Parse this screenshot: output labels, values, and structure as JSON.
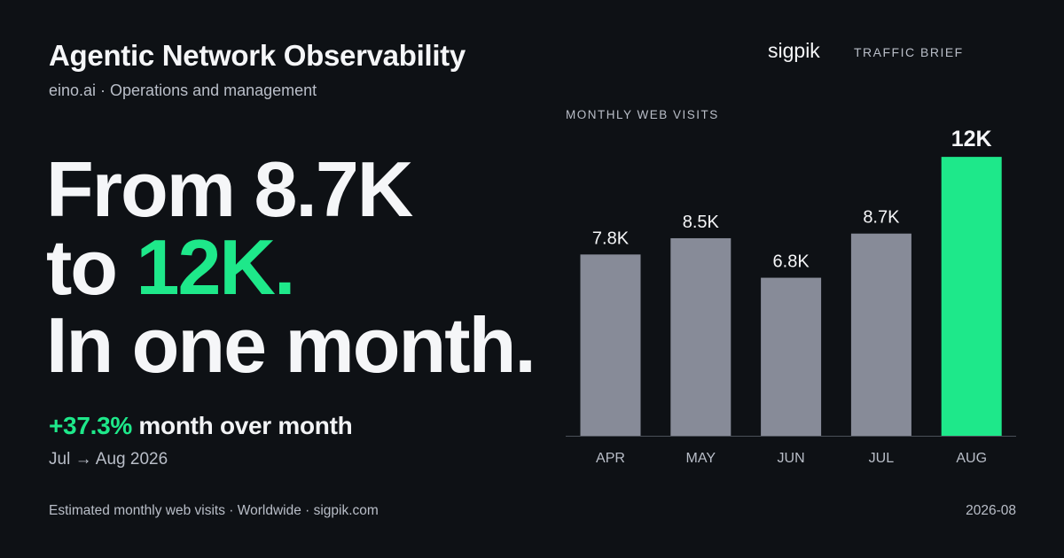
{
  "header": {
    "title": "Agentic Network Observability",
    "subtitle": "eino.ai · Operations and management"
  },
  "brand": {
    "name": "sigpik",
    "tag": "TRAFFIC BRIEF"
  },
  "headline": {
    "line1": "From 8.7K",
    "line2_prefix": "to ",
    "line2_highlight": "12K.",
    "line3": "In one month."
  },
  "change": {
    "value": "+37.3%",
    "label": " month over month"
  },
  "period": "Jul → Aug 2026",
  "footer": {
    "source": "Estimated monthly web visits · Worldwide · sigpik.com",
    "date": "2026-08"
  },
  "colors": {
    "accent": "#1ee88a",
    "bar": "#878b98",
    "background": "#0e1115"
  },
  "chart_data": {
    "type": "bar",
    "title": "MONTHLY WEB VISITS",
    "categories": [
      "APR",
      "MAY",
      "JUN",
      "JUL",
      "AUG"
    ],
    "values": [
      7800,
      8500,
      6800,
      8700,
      12000
    ],
    "value_labels": [
      "7.8K",
      "8.5K",
      "6.8K",
      "8.7K",
      "12K"
    ],
    "highlight_index": 4,
    "ylim": [
      0,
      12500
    ],
    "grid": false,
    "legend": "none"
  }
}
